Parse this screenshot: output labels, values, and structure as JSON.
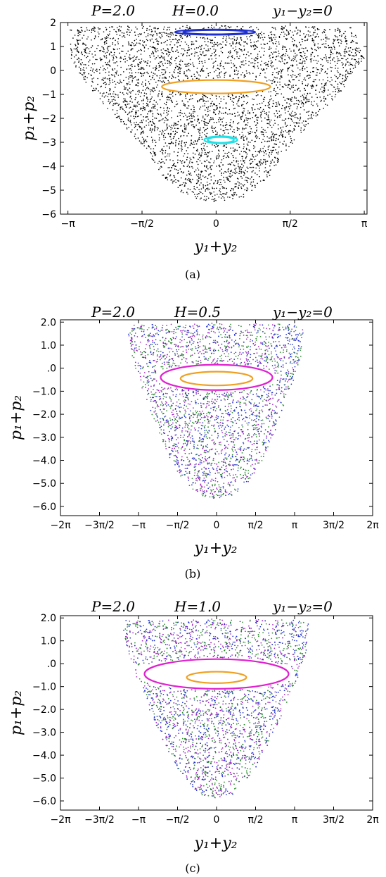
{
  "figure": {
    "captions": [
      "(a)",
      "(b)",
      "(c)"
    ]
  },
  "chart_data": [
    {
      "type": "scatter",
      "panel": "(a)",
      "title_parts": [
        "P=2.0",
        "H=0.0",
        "y₁−y₂=0"
      ],
      "xlabel": "y₁+y₂",
      "ylabel": "p₁+p₂",
      "xlim": [
        -3.3,
        3.2
      ],
      "ylim": [
        -6,
        2
      ],
      "xticks": [
        {
          "value": -3.14159,
          "label": "−π"
        },
        {
          "value": -1.5708,
          "label": "−π/2"
        },
        {
          "value": 0,
          "label": "0"
        },
        {
          "value": 1.5708,
          "label": "π/2"
        },
        {
          "value": 3.14159,
          "label": "π"
        }
      ],
      "yticks": [
        {
          "value": 2,
          "label": "2"
        },
        {
          "value": 1,
          "label": "1"
        },
        {
          "value": 0,
          "label": "0"
        },
        {
          "value": -1,
          "label": "−1"
        },
        {
          "value": -2,
          "label": "−2"
        },
        {
          "value": -3,
          "label": "−3"
        },
        {
          "value": -4,
          "label": "−4"
        },
        {
          "value": -5,
          "label": "−5"
        },
        {
          "value": -6,
          "label": "−6"
        }
      ],
      "grid": false,
      "legend": "none",
      "chaotic_sea": {
        "colors": [
          "#000000"
        ],
        "boundary": [
          [
            -3.1,
            1.7
          ],
          [
            -2.9,
            1.8
          ],
          [
            -2.2,
            1.85
          ],
          [
            0,
            1.88
          ],
          [
            2.2,
            1.85
          ],
          [
            2.9,
            1.8
          ],
          [
            3.15,
            0.5
          ],
          [
            2.6,
            -1.0
          ],
          [
            2.0,
            -2.2
          ],
          [
            1.5,
            -3.3
          ],
          [
            1.1,
            -4.5
          ],
          [
            0.6,
            -5.3
          ],
          [
            0,
            -5.5
          ],
          [
            -0.6,
            -5.3
          ],
          [
            -1.1,
            -4.5
          ],
          [
            -1.5,
            -3.3
          ],
          [
            -2.0,
            -2.2
          ],
          [
            -2.6,
            -1.0
          ],
          [
            -3.1,
            0.5
          ]
        ]
      },
      "series": [
        {
          "name": "",
          "color": "#1f2fcc",
          "kind": "orbit",
          "cx": -0.02,
          "cy": 1.6,
          "rx": 0.85,
          "ry": 0.11,
          "double": true
        },
        {
          "name": "",
          "color": "#f0a020",
          "kind": "orbit",
          "cx": 0.0,
          "cy": -0.68,
          "rx": 1.15,
          "ry": 0.28,
          "double": false
        },
        {
          "name": "",
          "color": "#22e0e6",
          "kind": "orbit",
          "cx": 0.1,
          "cy": -2.9,
          "rx": 0.35,
          "ry": 0.15,
          "double": true
        }
      ]
    },
    {
      "type": "scatter",
      "panel": "(b)",
      "title_parts": [
        "P=2.0",
        "H=0.5",
        "y₁−y₂=0"
      ],
      "xlabel": "y₁+y₂",
      "ylabel": "p₁+p₂",
      "xlim": [
        -6.2832,
        6.2832
      ],
      "ylim": [
        -6.4,
        2.1
      ],
      "xticks": [
        {
          "value": -6.2832,
          "label": "−2π"
        },
        {
          "value": -4.7124,
          "label": "−3π/2"
        },
        {
          "value": -3.14159,
          "label": "−π"
        },
        {
          "value": -1.5708,
          "label": "−π/2"
        },
        {
          "value": 0,
          "label": "0"
        },
        {
          "value": 1.5708,
          "label": "π/2"
        },
        {
          "value": 3.14159,
          "label": "π"
        },
        {
          "value": 4.7124,
          "label": "3π/2"
        },
        {
          "value": 6.2832,
          "label": "2π"
        }
      ],
      "yticks": [
        {
          "value": 2,
          "label": "2.0"
        },
        {
          "value": 1,
          "label": "1.0"
        },
        {
          "value": 0,
          "label": ".0"
        },
        {
          "value": -1,
          "label": "−1.0"
        },
        {
          "value": -2,
          "label": "−2.0"
        },
        {
          "value": -3,
          "label": "−3.0"
        },
        {
          "value": -4,
          "label": "−4.0"
        },
        {
          "value": -5,
          "label": "−5.0"
        },
        {
          "value": -6,
          "label": "−6.0"
        }
      ],
      "grid": false,
      "legend": "none",
      "chaotic_sea": {
        "colors": [
          "#1f2fcc",
          "#2a8a2a",
          "#a020c0"
        ],
        "boundary": [
          [
            -3.4,
            1.9
          ],
          [
            -3.0,
            1.92
          ],
          [
            0,
            1.95
          ],
          [
            3.0,
            1.92
          ],
          [
            3.5,
            1.7
          ],
          [
            3.4,
            0.5
          ],
          [
            3.0,
            -0.9
          ],
          [
            2.5,
            -2.3
          ],
          [
            2.0,
            -3.7
          ],
          [
            1.4,
            -4.8
          ],
          [
            0.7,
            -5.5
          ],
          [
            0,
            -5.7
          ],
          [
            -0.7,
            -5.5
          ],
          [
            -1.4,
            -4.8
          ],
          [
            -2.0,
            -3.7
          ],
          [
            -2.5,
            -2.3
          ],
          [
            -3.0,
            -0.9
          ],
          [
            -3.4,
            0.5
          ],
          [
            -3.6,
            1.6
          ]
        ]
      },
      "series": [
        {
          "name": "",
          "color": "#e020d0",
          "kind": "orbit",
          "cx": 0.0,
          "cy": -0.4,
          "rx": 2.25,
          "ry": 0.55,
          "double": false
        },
        {
          "name": "",
          "color": "#f0a020",
          "kind": "orbit",
          "cx": 0.0,
          "cy": -0.45,
          "rx": 1.45,
          "ry": 0.3,
          "double": false
        }
      ]
    },
    {
      "type": "scatter",
      "panel": "(c)",
      "title_parts": [
        "P=2.0",
        "H=1.0",
        "y₁−y₂=0"
      ],
      "xlabel": "y₁+y₂",
      "ylabel": "p₁+p₂",
      "xlim": [
        -6.2832,
        6.2832
      ],
      "ylim": [
        -6.4,
        2.1
      ],
      "xticks": [
        {
          "value": -6.2832,
          "label": "−2π"
        },
        {
          "value": -4.7124,
          "label": "−3π/2"
        },
        {
          "value": -3.14159,
          "label": "−π"
        },
        {
          "value": -1.5708,
          "label": "−π/2"
        },
        {
          "value": 0,
          "label": "0"
        },
        {
          "value": 1.5708,
          "label": "π/2"
        },
        {
          "value": 3.14159,
          "label": "π"
        },
        {
          "value": 4.7124,
          "label": "3π/2"
        },
        {
          "value": 6.2832,
          "label": "2π"
        }
      ],
      "yticks": [
        {
          "value": 2,
          "label": "2.0"
        },
        {
          "value": 1,
          "label": "1.0"
        },
        {
          "value": 0,
          "label": ".0"
        },
        {
          "value": -1,
          "label": "−1.0"
        },
        {
          "value": -2,
          "label": "−2.0"
        },
        {
          "value": -3,
          "label": "−3.0"
        },
        {
          "value": -4,
          "label": "−4.0"
        },
        {
          "value": -5,
          "label": "−5.0"
        },
        {
          "value": -6,
          "label": "−6.0"
        }
      ],
      "grid": false,
      "legend": "none",
      "chaotic_sea": {
        "colors": [
          "#1f2fcc",
          "#2a8a2a",
          "#a020c0"
        ],
        "boundary": [
          [
            -3.7,
            1.9
          ],
          [
            -3.2,
            1.92
          ],
          [
            0,
            1.95
          ],
          [
            3.2,
            1.92
          ],
          [
            3.7,
            1.8
          ],
          [
            3.6,
            0.5
          ],
          [
            3.2,
            -0.9
          ],
          [
            2.6,
            -2.3
          ],
          [
            2.0,
            -3.7
          ],
          [
            1.4,
            -4.9
          ],
          [
            0.7,
            -5.7
          ],
          [
            0,
            -5.9
          ],
          [
            -0.7,
            -5.7
          ],
          [
            -1.4,
            -4.9
          ],
          [
            -2.0,
            -3.7
          ],
          [
            -2.6,
            -2.3
          ],
          [
            -3.1,
            -0.9
          ],
          [
            -3.6,
            0.5
          ],
          [
            -3.8,
            1.6
          ]
        ]
      },
      "series": [
        {
          "name": "",
          "color": "#e020d0",
          "kind": "orbit",
          "cx": 0.0,
          "cy": -0.45,
          "rx": 2.9,
          "ry": 0.65,
          "double": false
        },
        {
          "name": "",
          "color": "#f0a020",
          "kind": "orbit",
          "cx": 0.0,
          "cy": -0.6,
          "rx": 1.2,
          "ry": 0.25,
          "double": false
        }
      ]
    }
  ]
}
